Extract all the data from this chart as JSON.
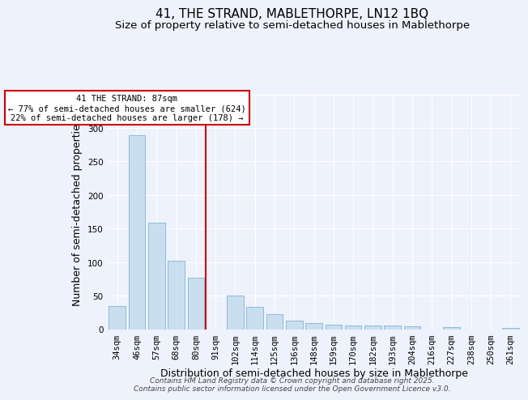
{
  "title": "41, THE STRAND, MABLETHORPE, LN12 1BQ",
  "subtitle": "Size of property relative to semi-detached houses in Mablethorpe",
  "xlabel": "Distribution of semi-detached houses by size in Mablethorpe",
  "ylabel": "Number of semi-detached properties",
  "bin_labels": [
    "34sqm",
    "46sqm",
    "57sqm",
    "68sqm",
    "80sqm",
    "91sqm",
    "102sqm",
    "114sqm",
    "125sqm",
    "136sqm",
    "148sqm",
    "159sqm",
    "170sqm",
    "182sqm",
    "193sqm",
    "204sqm",
    "216sqm",
    "227sqm",
    "238sqm",
    "250sqm",
    "261sqm"
  ],
  "bar_values": [
    35,
    289,
    159,
    102,
    77,
    0,
    50,
    33,
    22,
    13,
    9,
    7,
    5,
    5,
    5,
    4,
    0,
    3,
    0,
    0,
    2
  ],
  "bar_color": "#c9dff0",
  "bar_edge_color": "#7fb3d3",
  "vline_color": "#cc0000",
  "vline_pos": 4.5,
  "annotation_text": "41 THE STRAND: 87sqm\n← 77% of semi-detached houses are smaller (624)\n22% of semi-detached houses are larger (178) →",
  "annotation_box_color": "#ffffff",
  "annotation_box_edge_color": "#cc0000",
  "ylim": [
    0,
    350
  ],
  "yticks": [
    0,
    50,
    100,
    150,
    200,
    250,
    300,
    350
  ],
  "footer_text": "Contains HM Land Registry data © Crown copyright and database right 2025.\nContains public sector information licensed under the Open Government Licence v3.0.",
  "background_color": "#eef2fc",
  "grid_color": "#ffffff",
  "title_fontsize": 11,
  "subtitle_fontsize": 9.5,
  "axis_label_fontsize": 9,
  "tick_fontsize": 7.5,
  "footer_fontsize": 6.5
}
